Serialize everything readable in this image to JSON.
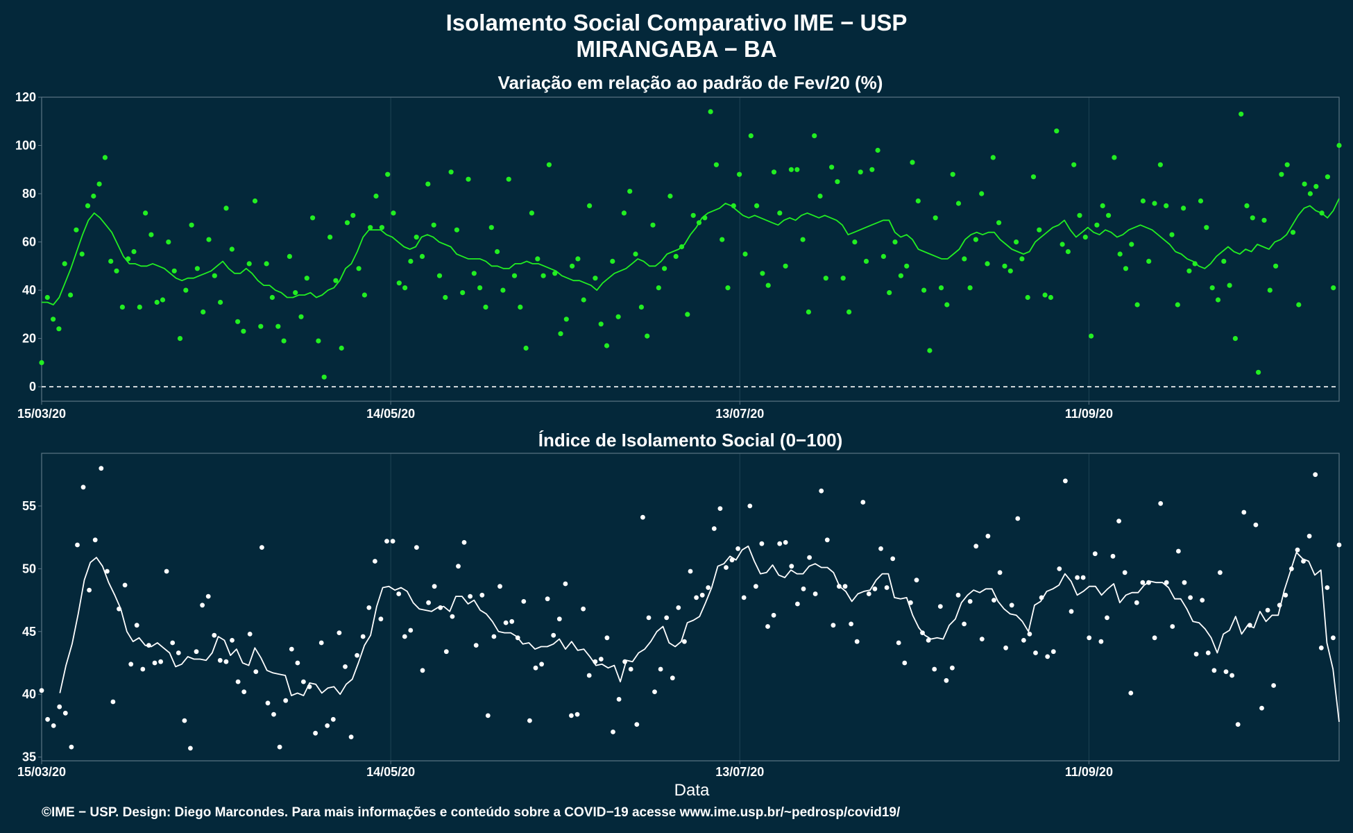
{
  "title_line1": "Isolamento Social Comparativo IME − USP",
  "title_line2": "MIRANGABA − BA",
  "xlabel": "Data",
  "caption": "©IME − USP. Design: Diego Marcondes. Para mais informações e conteúdo sobre a COVID−19 acesse www.ime.usp.br/~pedrosp/covid19/",
  "colors": {
    "background": "#04283a",
    "variation": "#22ee22",
    "index": "#ffffff",
    "frame": "#5a7484",
    "grid": "#1e4354"
  },
  "chart_data": [
    {
      "type": "scatter",
      "title": "Variação em relação ao padrão de Fev/20 (%)",
      "x_start": "15/03/20",
      "x_end": "24/10/20",
      "x_ticks": [
        "15/03/20",
        "14/05/20",
        "13/07/20",
        "11/09/20"
      ],
      "ylim": [
        -6,
        120
      ],
      "y_ticks": [
        0,
        20,
        40,
        60,
        80,
        100,
        120
      ],
      "reference_line": 0,
      "grid": true,
      "series": [
        {
          "style": "points",
          "values": [
            10,
            37,
            28,
            24,
            51,
            38,
            65,
            55,
            75,
            79,
            84,
            95,
            52,
            48,
            33,
            53,
            56,
            33,
            72,
            63,
            35,
            36,
            60,
            48,
            20,
            40,
            67,
            49,
            31,
            61,
            46,
            35,
            74,
            57,
            27,
            23,
            51,
            77,
            25,
            51,
            37,
            25,
            19,
            54,
            39,
            29,
            45,
            70,
            19,
            4,
            62,
            44,
            16,
            68,
            71,
            49,
            38,
            66,
            79,
            66,
            88,
            72,
            43,
            41,
            52,
            62,
            54,
            84,
            67,
            46,
            37,
            89,
            65,
            39,
            86,
            47,
            41,
            33,
            66,
            56,
            40,
            86,
            46,
            33,
            16,
            72,
            53,
            46,
            92,
            47,
            22,
            28,
            50,
            53,
            36,
            75,
            45,
            26,
            17,
            52,
            29,
            72,
            81,
            55,
            33,
            21,
            67,
            41,
            49,
            79,
            54,
            58,
            30,
            71,
            68,
            70,
            114,
            92,
            61,
            41,
            75,
            88,
            55,
            104,
            75,
            47,
            42,
            89,
            72,
            50,
            90,
            90,
            61,
            31,
            104,
            79,
            45,
            91,
            85,
            45,
            31,
            60,
            89,
            52,
            90,
            98,
            54,
            39,
            60,
            46,
            50,
            93,
            77,
            40,
            15,
            70,
            41,
            34,
            88,
            76,
            53,
            41,
            61,
            80,
            51,
            95,
            68,
            50,
            48,
            60,
            53,
            37,
            87,
            65,
            38,
            37,
            106,
            59,
            56,
            92,
            71,
            62,
            21,
            67,
            75,
            71,
            95,
            55,
            49,
            59,
            34,
            77,
            52,
            76,
            92,
            75,
            63,
            34,
            74,
            48,
            51,
            77,
            66,
            41,
            36,
            52,
            42,
            20,
            113,
            75,
            70,
            6,
            69,
            40,
            50,
            88,
            92,
            64,
            34,
            84,
            80,
            83,
            72,
            87,
            41,
            100
          ]
        },
        {
          "style": "line",
          "name": "",
          "values": [
            35,
            35,
            34,
            37,
            43,
            49,
            56,
            63,
            69,
            72,
            70,
            67,
            64,
            59,
            54,
            51,
            51,
            50,
            50,
            51,
            50,
            49,
            47,
            45,
            44,
            45,
            45,
            46,
            47,
            48,
            50,
            52,
            49,
            47,
            47,
            49,
            47,
            44,
            42,
            42,
            40,
            39,
            37,
            37,
            38,
            38,
            39,
            37,
            38,
            40,
            41,
            44,
            49,
            51,
            56,
            62,
            65,
            65,
            65,
            63,
            62,
            60,
            58,
            57,
            58,
            62,
            63,
            62,
            60,
            59,
            58,
            55,
            54,
            53,
            53,
            53,
            52,
            50,
            50,
            49,
            49,
            51,
            51,
            52,
            51,
            51,
            50,
            49,
            48,
            46,
            45,
            44,
            44,
            43,
            42,
            40,
            43,
            45,
            47,
            48,
            49,
            51,
            53,
            52,
            50,
            50,
            52,
            55,
            56,
            57,
            59,
            63,
            66,
            70,
            72,
            73,
            74,
            76,
            75,
            73,
            71,
            70,
            71,
            70,
            69,
            68,
            67,
            69,
            70,
            69,
            71,
            72,
            71,
            70,
            71,
            70,
            69,
            67,
            63,
            64,
            65,
            66,
            67,
            68,
            69,
            69,
            64,
            62,
            63,
            61,
            57,
            56,
            55,
            54,
            53,
            53,
            55,
            57,
            61,
            63,
            64,
            63,
            64,
            64,
            61,
            59,
            57,
            56,
            55,
            56,
            60,
            62,
            64,
            66,
            67,
            69,
            65,
            62,
            64,
            66,
            64,
            63,
            65,
            64,
            62,
            63,
            65,
            66,
            67,
            66,
            65,
            63,
            61,
            59,
            56,
            55,
            53,
            52,
            50,
            49,
            51,
            54,
            56,
            58,
            56,
            55,
            57,
            56,
            59,
            58,
            57,
            60,
            61,
            63,
            67,
            71,
            74,
            75,
            73,
            72,
            70,
            73,
            78
          ]
        }
      ]
    },
    {
      "type": "scatter",
      "title": "Índice de Isolamento Social (0−100)",
      "x_start": "15/03/20",
      "x_end": "24/10/20",
      "x_ticks": [
        "15/03/20",
        "14/05/20",
        "13/07/20",
        "11/09/20"
      ],
      "ylim": [
        34.7,
        59.2
      ],
      "y_ticks": [
        35,
        40,
        45,
        50,
        55
      ],
      "grid": true,
      "series": [
        {
          "style": "points",
          "values": [
            40.3,
            38.0,
            37.5,
            39.0,
            38.5,
            35.8,
            51.9,
            56.5,
            48.3,
            52.3,
            58.0,
            49.8,
            39.4,
            46.8,
            48.7,
            42.4,
            45.5,
            42.0,
            43.9,
            42.5,
            42.6,
            49.8,
            44.1,
            43.3,
            37.9,
            35.7,
            43.4,
            47.1,
            47.8,
            44.7,
            42.7,
            42.6,
            44.3,
            41.0,
            40.2,
            44.8,
            41.8,
            51.7,
            39.3,
            38.4,
            35.8,
            39.5,
            43.6,
            42.5,
            41.0,
            40.6,
            36.9,
            44.1,
            37.5,
            38.0,
            44.9,
            42.2,
            36.6,
            43.1,
            44.6,
            46.9,
            50.6,
            46.0,
            52.2,
            52.2,
            48.0,
            44.6,
            45.1,
            51.7,
            41.9,
            47.3,
            48.6,
            46.9,
            43.4,
            46.2,
            50.2,
            52.1,
            47.8,
            43.9,
            47.9,
            38.3,
            44.6,
            48.6,
            45.7,
            45.8,
            44.5,
            47.4,
            37.9,
            42.1,
            42.4,
            47.6,
            44.7,
            46.0,
            48.8,
            38.3,
            38.4,
            46.8,
            41.5,
            42.6,
            42.8,
            44.5,
            37.0,
            39.6,
            42.6,
            42.0,
            37.6,
            54.1,
            46.1,
            40.2,
            42.0,
            46.1,
            41.3,
            46.9,
            44.2,
            49.8,
            47.7,
            47.9,
            48.5,
            53.2,
            54.8,
            50.1,
            50.7,
            51.6,
            47.7,
            55.0,
            48.6,
            52.0,
            45.4,
            46.3,
            52.0,
            52.1,
            50.2,
            47.2,
            48.4,
            50.9,
            48.0,
            56.2,
            52.3,
            45.5,
            48.6,
            48.6,
            45.6,
            44.2,
            55.3,
            48.0,
            48.4,
            51.6,
            48.5,
            50.8,
            44.1,
            42.5,
            47.3,
            49.1,
            44.9,
            44.3,
            42.0,
            47.0,
            41.1,
            42.1,
            47.9,
            45.6,
            47.4,
            51.8,
            44.4,
            52.6,
            47.5,
            49.7,
            43.7,
            47.1,
            54.0,
            44.3,
            44.8,
            43.3,
            47.7,
            43.0,
            43.4,
            50.0,
            57.0,
            46.6,
            49.3,
            49.3,
            44.5,
            51.2,
            44.2,
            46.1,
            51.0,
            53.8,
            49.7,
            40.1,
            47.3,
            48.9,
            48.9,
            44.5,
            55.2,
            48.9,
            45.4,
            51.4,
            48.9,
            47.7,
            43.2,
            47.5,
            43.3,
            41.9,
            49.7,
            41.8,
            41.5,
            37.6,
            54.5,
            45.5,
            53.5,
            38.9,
            46.7,
            40.7,
            47.1,
            47.9,
            50.0,
            51.5,
            50.6,
            52.6,
            57.5,
            43.7,
            48.5,
            44.5,
            51.9
          ]
        },
        {
          "style": "line",
          "name": "",
          "values": [
            null,
            null,
            null,
            40.1,
            42.3,
            44.0,
            46.4,
            49.1,
            50.5,
            50.9,
            50.2,
            48.9,
            47.9,
            46.8,
            45.0,
            44.2,
            44.5,
            43.9,
            43.8,
            44.1,
            43.7,
            43.3,
            42.2,
            42.4,
            43.0,
            42.8,
            42.8,
            42.7,
            43.3,
            44.6,
            44.3,
            43.1,
            43.6,
            42.5,
            42.3,
            43.7,
            42.9,
            41.9,
            41.7,
            41.6,
            41.5,
            39.9,
            40.1,
            39.9,
            40.9,
            40.8,
            40.1,
            40.5,
            40.6,
            40.0,
            40.8,
            41.2,
            42.5,
            43.9,
            44.7,
            47.0,
            48.5,
            48.6,
            48.3,
            48.5,
            48.2,
            47.3,
            46.8,
            46.7,
            46.6,
            46.9,
            47.0,
            46.6,
            47.8,
            47.8,
            47.2,
            47.5,
            46.7,
            46.4,
            45.8,
            45.0,
            44.9,
            44.9,
            44.6,
            44.0,
            44.1,
            43.6,
            43.8,
            43.8,
            44.0,
            44.4,
            43.6,
            44.2,
            43.5,
            43.6,
            43.0,
            42.3,
            42.4,
            42.1,
            42.3,
            41.0,
            42.7,
            42.6,
            43.3,
            43.6,
            44.2,
            45.0,
            45.4,
            44.1,
            43.8,
            44.2,
            45.7,
            45.9,
            46.2,
            47.3,
            48.5,
            50.2,
            50.4,
            51.0,
            50.7,
            51.5,
            51.8,
            50.6,
            49.6,
            49.7,
            50.3,
            49.5,
            49.3,
            49.9,
            49.6,
            49.6,
            50.2,
            50.4,
            50.1,
            50.1,
            49.7,
            48.6,
            48.2,
            47.4,
            48.0,
            48.2,
            48.3,
            49.1,
            49.6,
            49.6,
            47.7,
            47.6,
            47.7,
            46.3,
            45.3,
            44.7,
            44.4,
            44.5,
            44.4,
            45.5,
            46.0,
            47.3,
            47.9,
            48.3,
            48.1,
            48.4,
            48.4,
            47.4,
            46.8,
            46.4,
            46.3,
            45.8,
            45.0,
            47.1,
            47.4,
            48.2,
            48.4,
            48.7,
            49.6,
            49.0,
            47.9,
            48.2,
            48.6,
            48.6,
            47.9,
            48.4,
            48.8,
            47.3,
            47.9,
            48.1,
            48.1,
            48.7,
            49.0,
            48.9,
            48.9,
            48.5,
            47.6,
            47.6,
            46.8,
            45.8,
            45.7,
            45.2,
            44.5,
            43.3,
            44.8,
            45.1,
            46.2,
            44.8,
            45.5,
            45.3,
            46.6,
            45.8,
            46.3,
            46.3,
            48.3,
            49.8,
            51.3,
            50.8,
            50.6,
            49.5,
            49.9,
            44.1,
            42.0,
            37.8
          ]
        }
      ]
    }
  ]
}
